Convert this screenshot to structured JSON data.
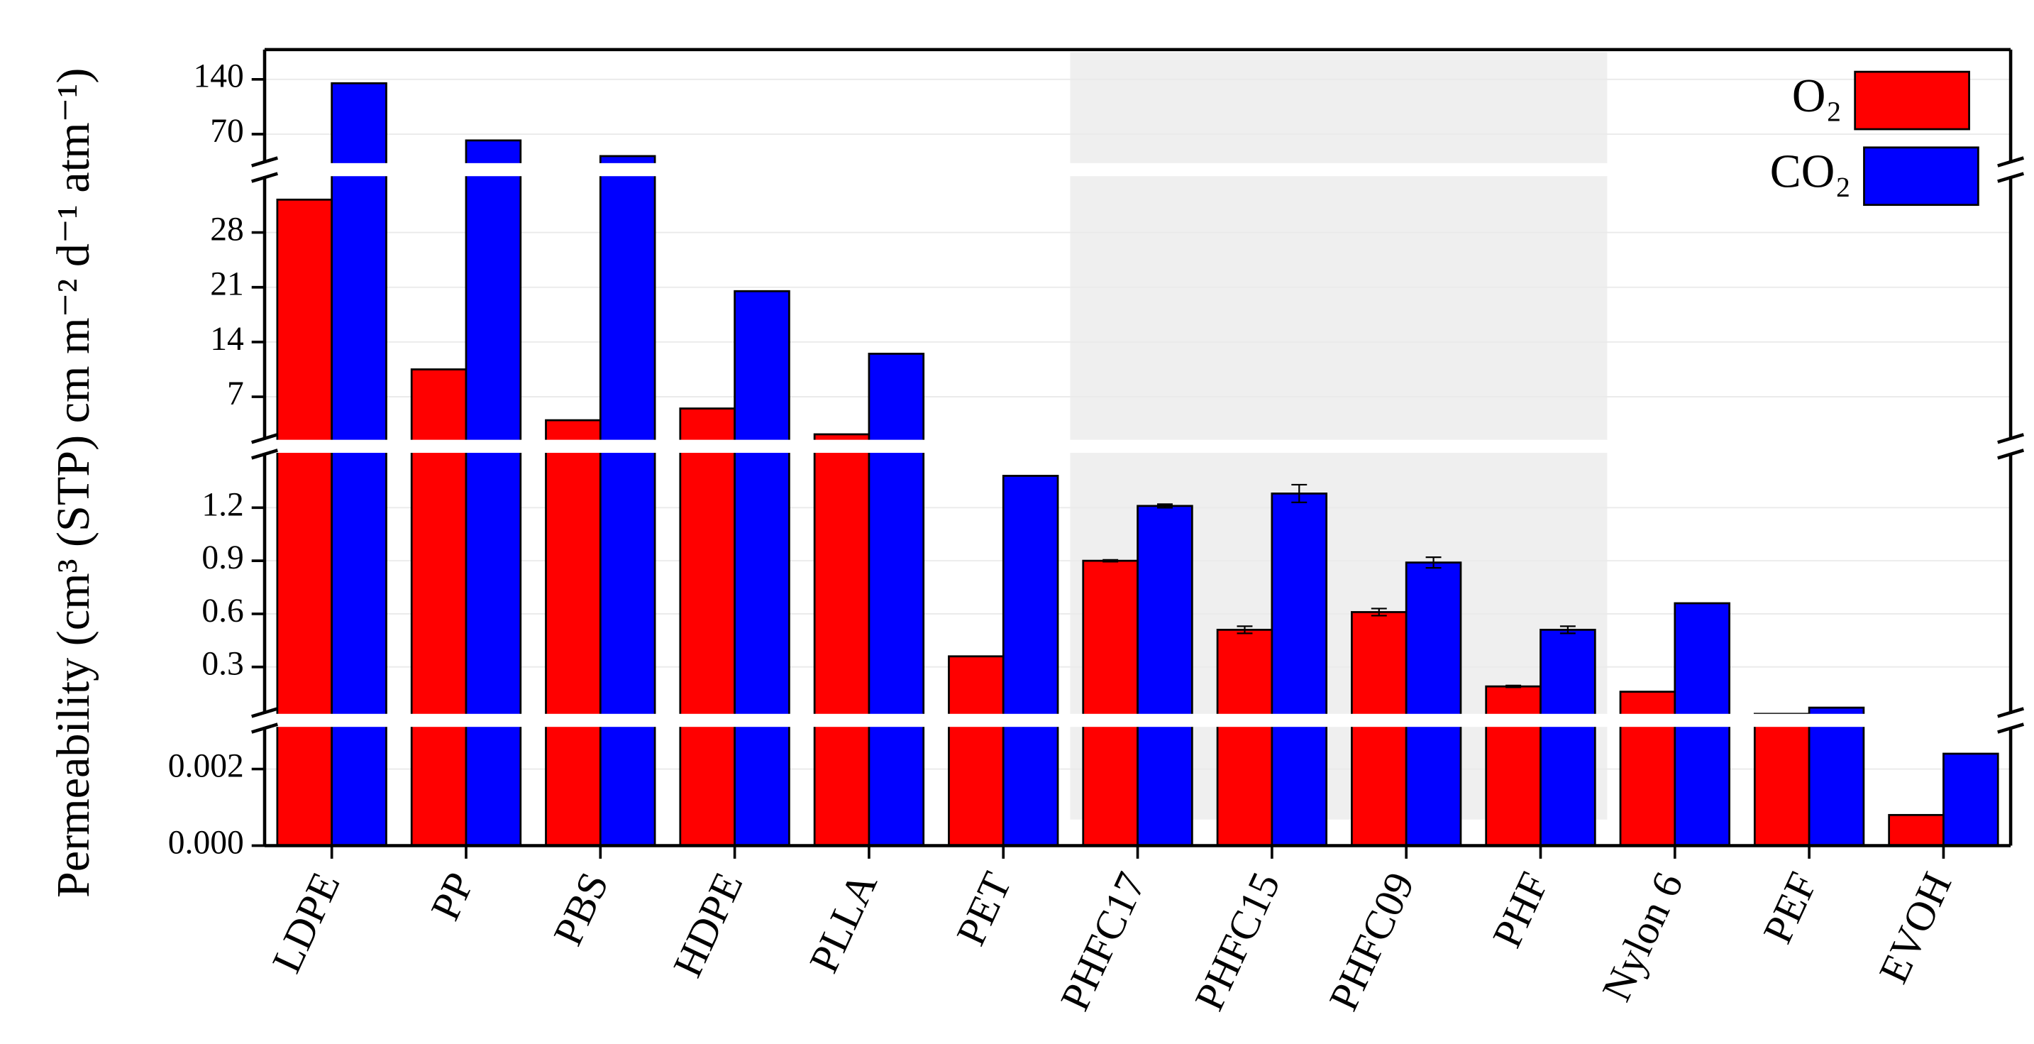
{
  "chart_data": {
    "type": "bar",
    "y_label": "Permeability (cm³ (STP) cm m⁻² d⁻¹ atm⁻¹)",
    "categories": [
      "LDPE",
      "PP",
      "PBS",
      "HDPE",
      "PLLA",
      "PET",
      "PHFC17",
      "PHFC15",
      "PHFC09",
      "PHF",
      "Nylon 6",
      "PEF",
      "EVOH"
    ],
    "series": [
      {
        "name": "O₂",
        "color": "#ff0000",
        "values": [
          32.2,
          10.5,
          4,
          5.5,
          2.2,
          0.36,
          0.9,
          0.51,
          0.61,
          0.19,
          0.16,
          0.035,
          0.0008
        ],
        "errors": [
          null,
          null,
          null,
          null,
          null,
          null,
          0.005,
          0.02,
          0.02,
          0.005,
          null,
          null,
          null
        ]
      },
      {
        "name": "CO₂",
        "color": "#0000ff",
        "values": [
          135,
          62,
          42,
          20.5,
          12.5,
          1.38,
          1.21,
          1.28,
          0.89,
          0.51,
          0.66,
          0.07,
          0.0024
        ],
        "errors": [
          null,
          null,
          null,
          null,
          null,
          null,
          0.01,
          0.05,
          0.03,
          0.02,
          null,
          null,
          null
        ]
      }
    ],
    "y_segments": [
      {
        "ylim": [
          0,
          0.0031
        ],
        "yticks": [
          {
            "value": 0,
            "label": "0.000"
          },
          {
            "value": 0.002,
            "label": "0.002"
          }
        ]
      },
      {
        "ylim": [
          0.035,
          1.51
        ],
        "yticks": [
          0.3,
          0.6,
          0.9,
          1.2
        ]
      },
      {
        "ylim": [
          1.5,
          35.2
        ],
        "yticks": [
          7,
          14,
          21,
          28
        ]
      },
      {
        "ylim": [
          33,
          178
        ],
        "yticks": [
          70,
          140
        ]
      }
    ],
    "grid": true,
    "legend": "upper right"
  }
}
